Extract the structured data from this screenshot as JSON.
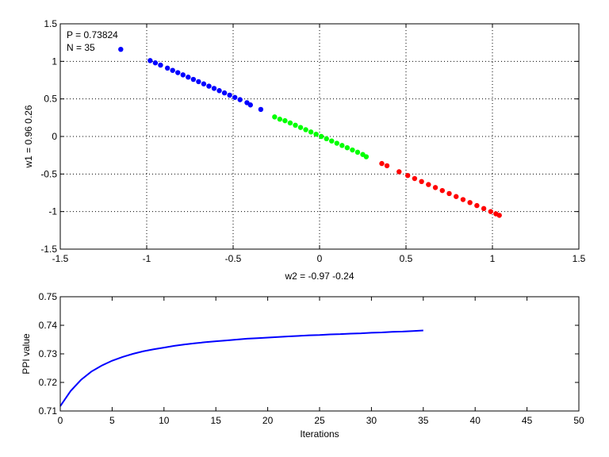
{
  "chart_data": [
    {
      "type": "scatter",
      "title": "",
      "xlabel": "w2 = -0.97  -0.24",
      "ylabel": "w1 = 0.96  0.26",
      "xlim": [
        -1.5,
        1.5
      ],
      "ylim": [
        -1.5,
        1.5
      ],
      "xticks": [
        "-1.5",
        "-1",
        "-0.5",
        "0",
        "0.5",
        "1",
        "1.5"
      ],
      "yticks": [
        "-1.5",
        "-1",
        "-0.5",
        "0",
        "0.5",
        "1",
        "1.5"
      ],
      "grid": true,
      "annotations": [
        "P = 0.73824",
        "N = 35"
      ],
      "series": [
        {
          "color": "#0000ff",
          "x": [
            -1.15,
            -0.98,
            -0.95,
            -0.92,
            -0.88,
            -0.85,
            -0.82,
            -0.79,
            -0.76,
            -0.73,
            -0.7,
            -0.67,
            -0.64,
            -0.61,
            -0.58,
            -0.55,
            -0.52,
            -0.49,
            -0.46,
            -0.42,
            -0.4,
            -0.34
          ],
          "y": [
            1.16,
            1.01,
            0.98,
            0.95,
            0.91,
            0.88,
            0.85,
            0.82,
            0.79,
            0.76,
            0.73,
            0.7,
            0.67,
            0.64,
            0.61,
            0.58,
            0.55,
            0.52,
            0.49,
            0.45,
            0.42,
            0.36
          ]
        },
        {
          "color": "#00ff00",
          "x": [
            -0.26,
            -0.23,
            -0.2,
            -0.17,
            -0.14,
            -0.11,
            -0.08,
            -0.05,
            -0.02,
            0.01,
            0.04,
            0.07,
            0.1,
            0.13,
            0.16,
            0.19,
            0.22,
            0.25,
            0.27
          ],
          "y": [
            0.26,
            0.23,
            0.21,
            0.18,
            0.15,
            0.12,
            0.09,
            0.06,
            0.03,
            0.0,
            -0.03,
            -0.06,
            -0.09,
            -0.12,
            -0.15,
            -0.18,
            -0.21,
            -0.24,
            -0.27
          ]
        },
        {
          "color": "#ff0000",
          "x": [
            0.36,
            0.39,
            0.46,
            0.51,
            0.55,
            0.59,
            0.63,
            0.67,
            0.71,
            0.75,
            0.79,
            0.83,
            0.87,
            0.91,
            0.95,
            0.99,
            1.02,
            1.04
          ],
          "y": [
            -0.36,
            -0.39,
            -0.47,
            -0.52,
            -0.56,
            -0.6,
            -0.64,
            -0.68,
            -0.72,
            -0.76,
            -0.8,
            -0.84,
            -0.88,
            -0.92,
            -0.96,
            -1.0,
            -1.03,
            -1.05
          ]
        }
      ]
    },
    {
      "type": "line",
      "title": "",
      "xlabel": "Iterations",
      "ylabel": "PPI value",
      "xlim": [
        0,
        50
      ],
      "ylim": [
        0.71,
        0.75
      ],
      "xticks": [
        "0",
        "5",
        "10",
        "15",
        "20",
        "25",
        "30",
        "35",
        "40",
        "45",
        "50"
      ],
      "yticks": [
        "0.71",
        "0.72",
        "0.73",
        "0.74",
        "0.75"
      ],
      "grid": false,
      "series": [
        {
          "color": "#0000ff",
          "x": [
            0,
            1,
            2,
            3,
            4,
            5,
            6,
            7,
            8,
            9,
            10,
            11,
            12,
            13,
            14,
            15,
            16,
            17,
            18,
            19,
            20,
            21,
            22,
            23,
            24,
            25,
            26,
            27,
            28,
            29,
            30,
            31,
            32,
            33,
            34,
            35
          ],
          "y": [
            0.7117,
            0.717,
            0.7209,
            0.7238,
            0.7259,
            0.7276,
            0.7289,
            0.73,
            0.7309,
            0.7316,
            0.7322,
            0.7328,
            0.7333,
            0.7337,
            0.7341,
            0.7344,
            0.7347,
            0.735,
            0.7353,
            0.7355,
            0.7357,
            0.7359,
            0.7361,
            0.7363,
            0.7365,
            0.7366,
            0.7368,
            0.7369,
            0.7371,
            0.7372,
            0.7374,
            0.7375,
            0.7377,
            0.7378,
            0.738,
            0.7382
          ]
        }
      ]
    }
  ]
}
